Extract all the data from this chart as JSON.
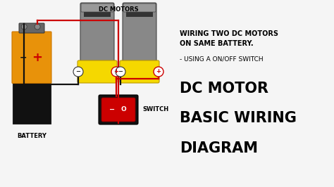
{
  "bg_color": "#1a1a1a",
  "fig_bg": "#1a1a1a",
  "title_lines": [
    "DC MOTOR",
    "BASIC WIRING",
    "DIAGRAM"
  ],
  "title_color": "#000000",
  "title_fontsize": 15,
  "subtitle1": "WIRING TWO DC MOTORS",
  "subtitle2": "ON SAME BATTERY.",
  "subtitle3": "- USING A ON/OFF SWITCH",
  "subtitle_fontsize": 6.5,
  "label_dc_motors": "DC MOTORS",
  "label_switch": "SWITCH",
  "label_battery": "BATTERY",
  "motor_body_color": "#888888",
  "motor_body_dark": "#555555",
  "motor_stripe_color": "#333333",
  "motor_yellow": "#f5d800",
  "motor_terminal_circle": "#ffffff",
  "motor_terminal_border": "#cc0000",
  "battery_orange": "#e8920a",
  "battery_black": "#111111",
  "battery_cap": "#555555",
  "battery_minus_color": "#222222",
  "battery_plus_color": "#cc0000",
  "switch_outer": "#111111",
  "switch_red": "#cc0000",
  "switch_red_dark": "#880000",
  "wire_black": "#111111",
  "wire_red": "#cc0000",
  "line_width": 1.6,
  "white_bg": "#f0f0f0",
  "white_bg_color": "#f0f0f0"
}
